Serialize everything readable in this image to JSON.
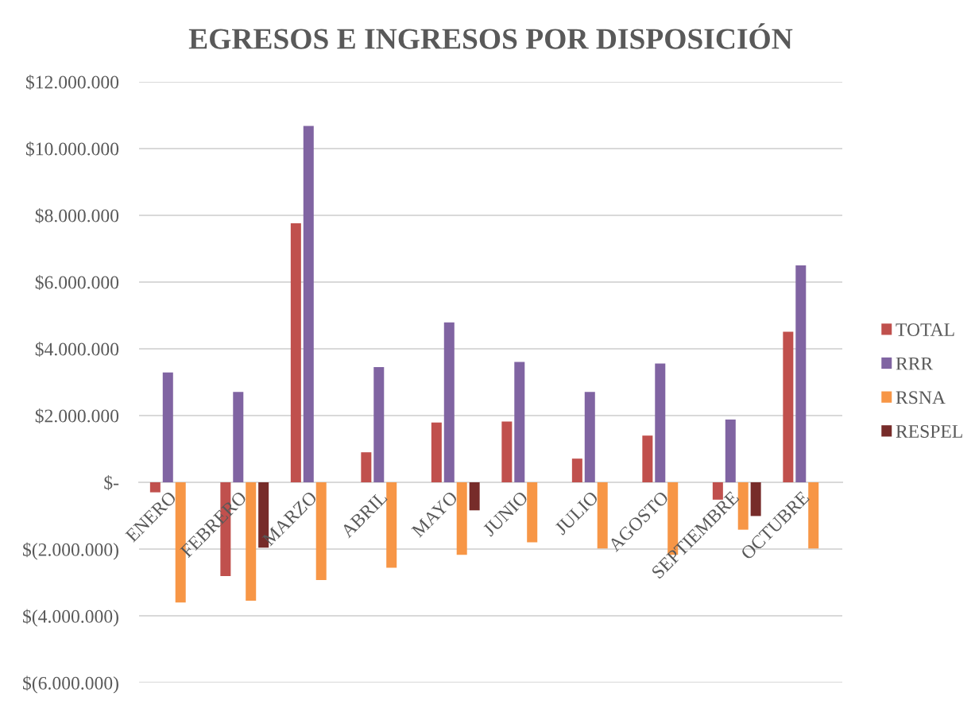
{
  "chart_data": {
    "type": "bar",
    "title": "EGRESOS E INGRESOS POR DISPOSICIÓN",
    "categories": [
      "ENERO",
      "FEBRERO",
      "MARZO",
      "ABRIL",
      "MAYO",
      "JUNIO",
      "JULIO",
      "AGOSTO",
      "SEPTIEMBRE",
      "OCTUBRE"
    ],
    "series": [
      {
        "name": "TOTAL",
        "color": "#c0504d",
        "values": [
          -300000,
          -2810000,
          7760000,
          900000,
          1790000,
          1820000,
          710000,
          1400000,
          -520000,
          4510000
        ]
      },
      {
        "name": "RRR",
        "color": "#8064a2",
        "values": [
          3290000,
          2710000,
          10680000,
          3450000,
          4790000,
          3610000,
          2710000,
          3560000,
          1880000,
          6500000
        ]
      },
      {
        "name": "RSNA",
        "color": "#f79646",
        "values": [
          -3600000,
          -3550000,
          -2930000,
          -2560000,
          -2170000,
          -1800000,
          -1980000,
          -2170000,
          -1420000,
          -1980000
        ]
      },
      {
        "name": "RESPEL",
        "color": "#772c2a",
        "values": [
          null,
          -1960000,
          null,
          null,
          -840000,
          null,
          null,
          null,
          -1010000,
          null
        ]
      }
    ],
    "ylim": [
      -6000000,
      12000000
    ],
    "yticks": [
      {
        "value": -6000000,
        "label": "$(6.000.000)"
      },
      {
        "value": -4000000,
        "label": "$(4.000.000)"
      },
      {
        "value": -2000000,
        "label": "$(2.000.000)"
      },
      {
        "value": 0,
        "label": "$-"
      },
      {
        "value": 2000000,
        "label": "$2.000.000"
      },
      {
        "value": 4000000,
        "label": "$4.000.000"
      },
      {
        "value": 6000000,
        "label": "$6.000.000"
      },
      {
        "value": 8000000,
        "label": "$8.000.000"
      },
      {
        "value": 10000000,
        "label": "$10.000.000"
      },
      {
        "value": 12000000,
        "label": "$12.000.000"
      }
    ],
    "grid": "y",
    "legend": "right"
  }
}
